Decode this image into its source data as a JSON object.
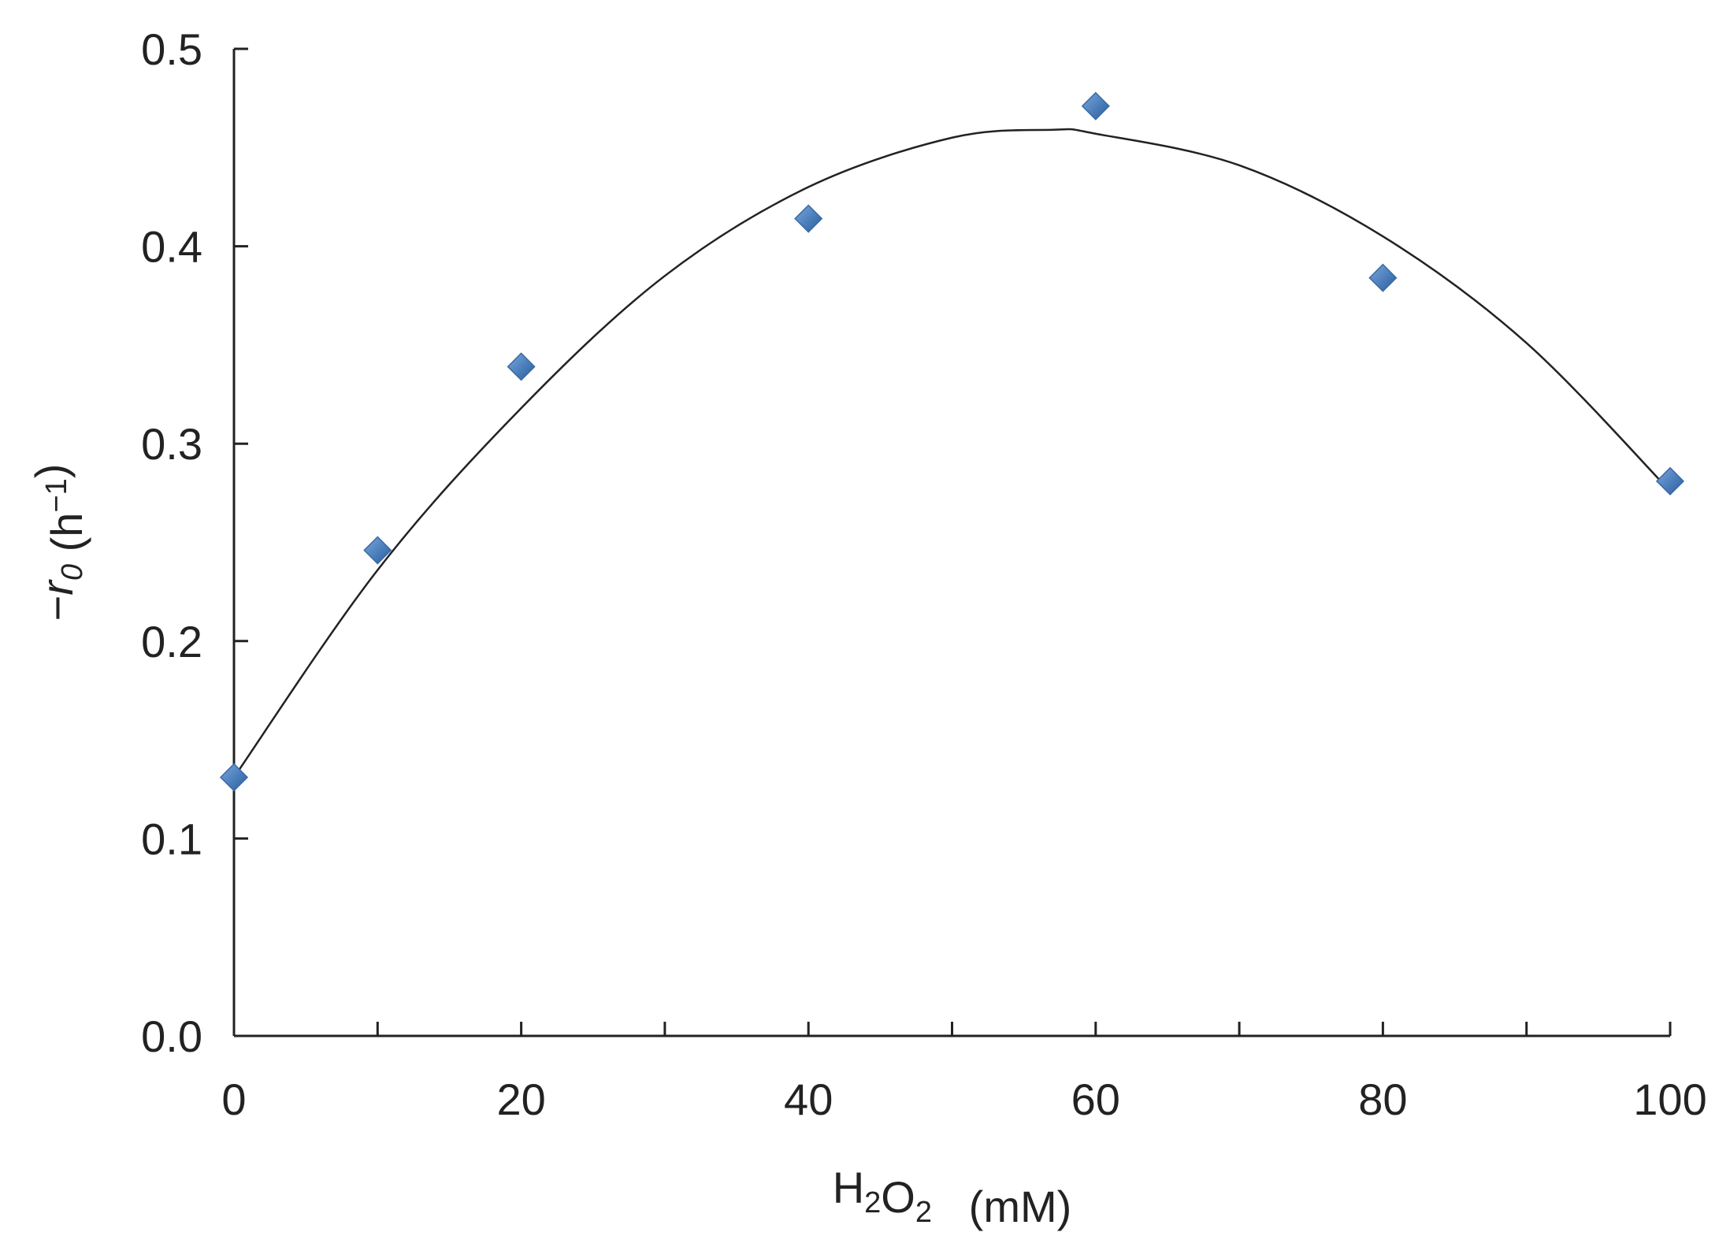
{
  "chart_data": {
    "type": "scatter",
    "title": "",
    "xlabel": {
      "parts": [
        {
          "text": "H",
          "style": "normal"
        },
        {
          "text": "2",
          "style": "sub"
        },
        {
          "text": "O",
          "style": "normal"
        },
        {
          "text": "2",
          "style": "sub"
        },
        {
          "text": "   (mM)",
          "style": "normal"
        }
      ]
    },
    "ylabel": {
      "parts": [
        {
          "text": "−",
          "style": "normal"
        },
        {
          "text": "r",
          "style": "italic"
        },
        {
          "text": "0",
          "style": "italic-sub"
        },
        {
          "text": " (h",
          "style": "normal"
        },
        {
          "text": "−1",
          "style": "sup"
        },
        {
          "text": ")",
          "style": "normal"
        }
      ]
    },
    "xlim": [
      0,
      100
    ],
    "ylim": [
      0,
      0.5
    ],
    "x_ticks": [
      0,
      20,
      40,
      60,
      80,
      100
    ],
    "x_tick_labels": [
      "0",
      "20",
      "40",
      "60",
      "80",
      "100"
    ],
    "x_minor_ticks": [
      10,
      30,
      50,
      70,
      90
    ],
    "y_ticks": [
      0,
      0.1,
      0.2,
      0.3,
      0.4,
      0.5
    ],
    "y_tick_labels": [
      "0.0",
      "0.1",
      "0.2",
      "0.3",
      "0.4",
      "0.5"
    ],
    "grid": false,
    "legend": "none",
    "series": [
      {
        "marker": "diamond",
        "color": "#4A7EBB",
        "x": [
          0,
          10,
          20,
          40,
          60,
          80,
          100
        ],
        "y": [
          0.131,
          0.246,
          0.339,
          0.414,
          0.471,
          0.384,
          0.281
        ]
      }
    ],
    "trendline": {
      "kind": "polynomial",
      "x": [
        0,
        10,
        20,
        30,
        40,
        50,
        57,
        60,
        70,
        80,
        90,
        100
      ],
      "y": [
        0.131,
        0.236,
        0.318,
        0.385,
        0.43,
        0.455,
        0.459,
        0.457,
        0.441,
        0.405,
        0.351,
        0.276
      ],
      "color": "#222222"
    }
  }
}
